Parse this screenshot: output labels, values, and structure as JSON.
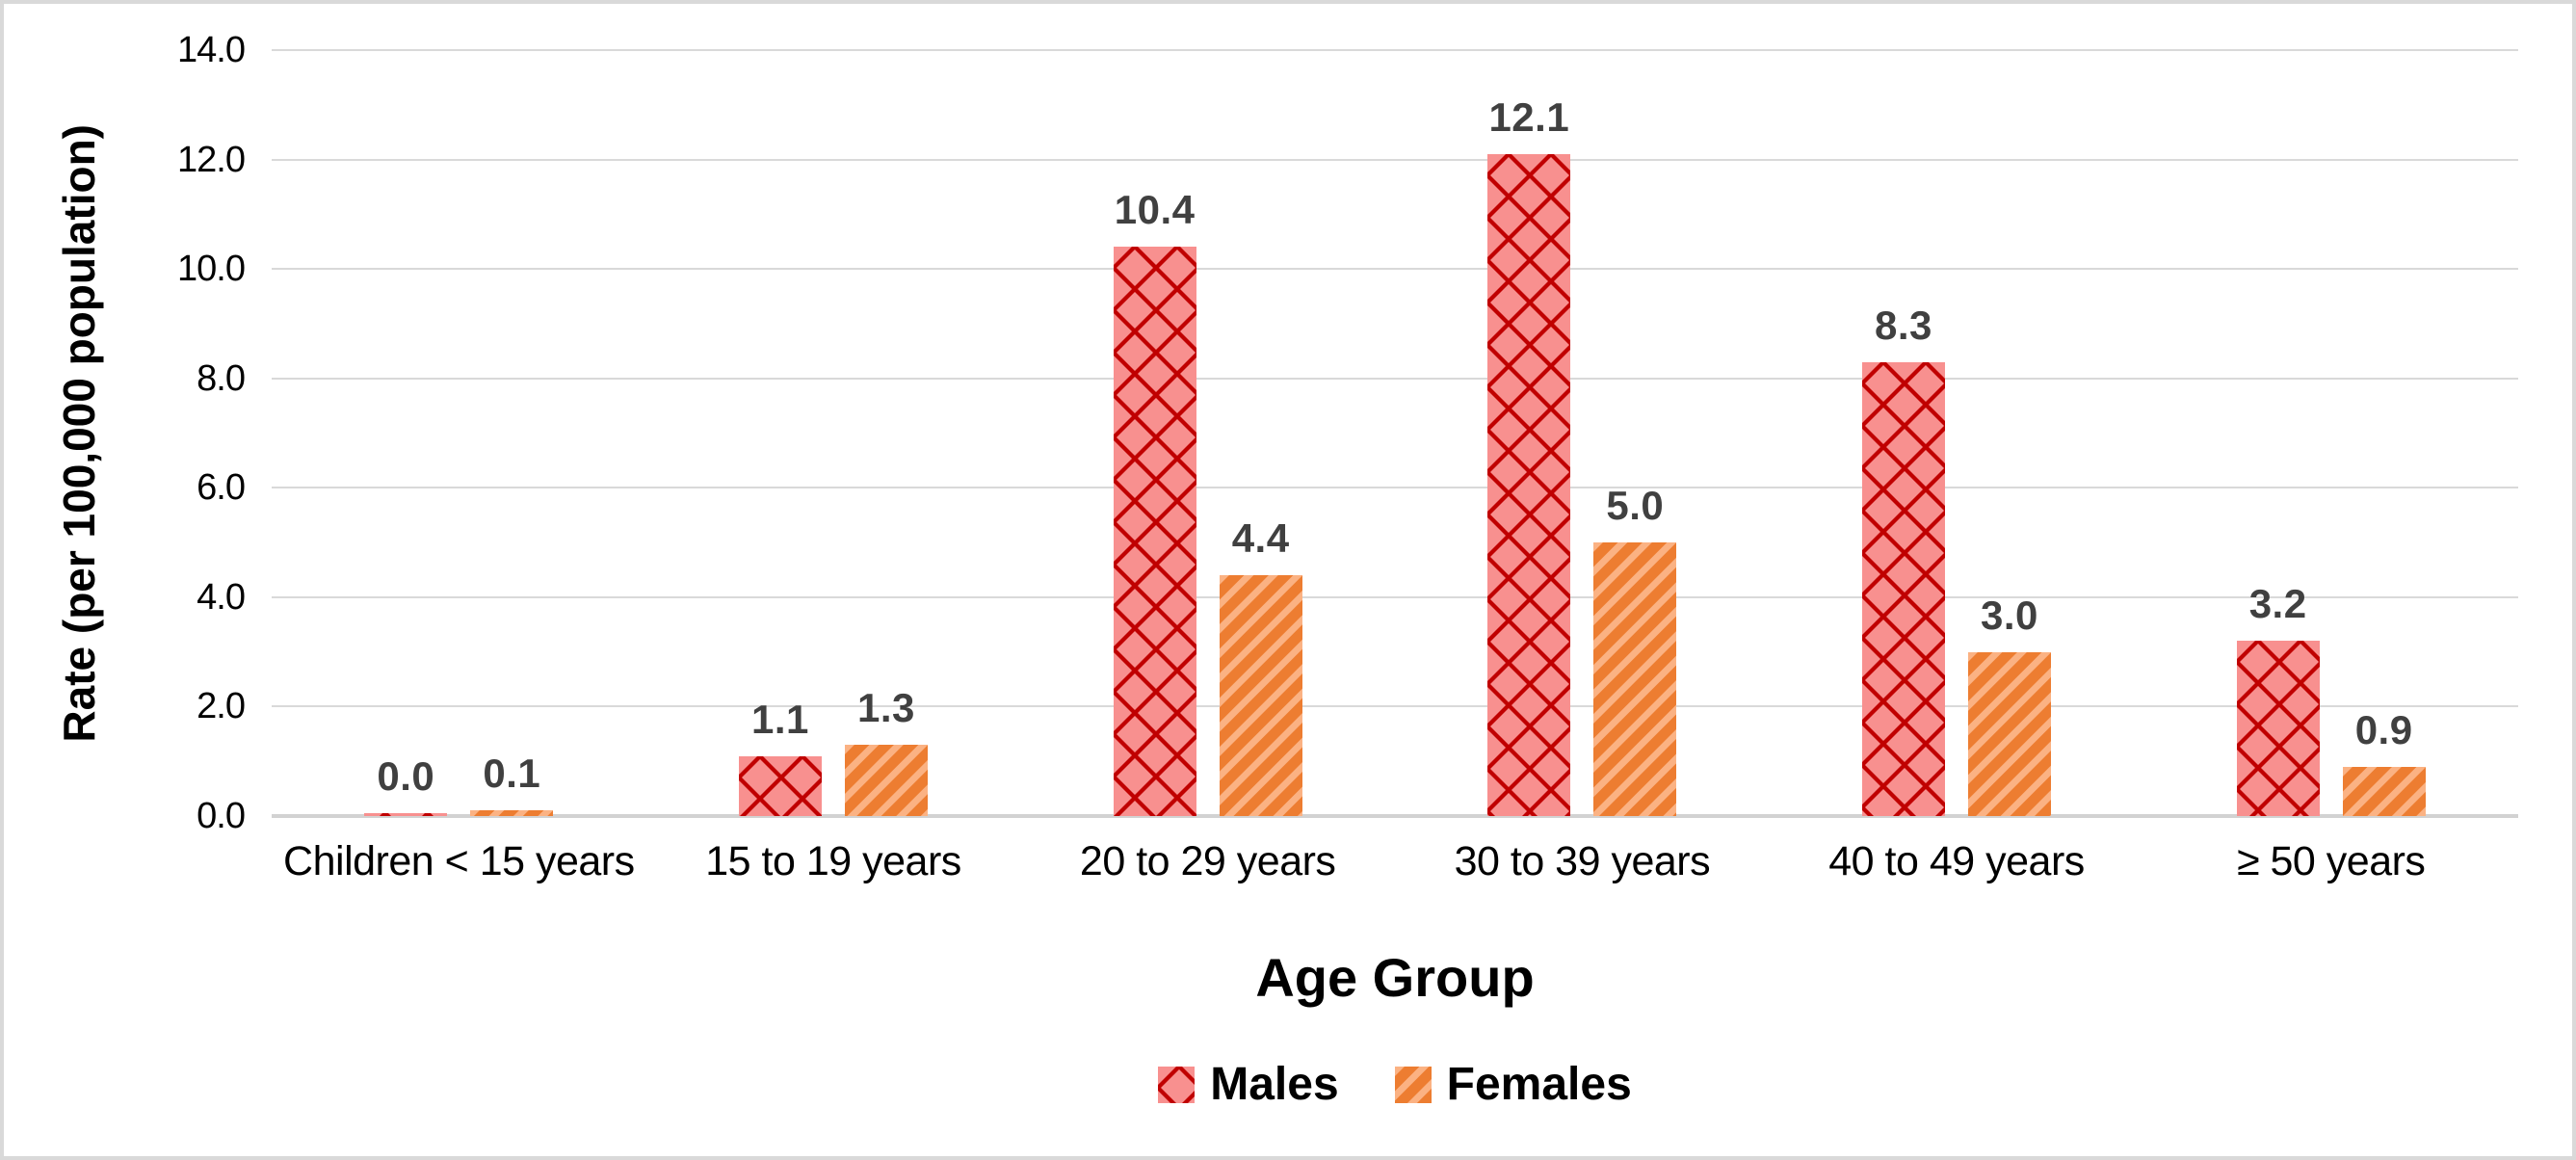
{
  "chart_data": {
    "type": "bar",
    "title": "",
    "xlabel": "Age Group",
    "ylabel": "Rate (per 100,000 population)",
    "categories": [
      "Children < 15 years",
      "15 to 19 years",
      "20 to 29 years",
      "30 to 39 years",
      "40 to 49 years",
      "≥ 50 years"
    ],
    "series": [
      {
        "name": "Males",
        "values": [
          0.0,
          1.1,
          10.4,
          12.1,
          8.3,
          3.2
        ],
        "labels": [
          "0.0",
          "1.1",
          "10.4",
          "12.1",
          "8.3",
          "3.2"
        ],
        "pattern": "diamond-checker",
        "color": "#C00000",
        "pattern_color": "#F8908F"
      },
      {
        "name": "Females",
        "values": [
          0.1,
          1.3,
          4.4,
          5.0,
          3.0,
          0.9
        ],
        "labels": [
          "0.1",
          "1.3",
          "4.4",
          "5.0",
          "3.0",
          "0.9"
        ],
        "pattern": "diagonal-stripes",
        "color": "#ED7D31",
        "pattern_color": "#FBB283"
      }
    ],
    "y_ticks": [
      "14.0",
      "12.0",
      "10.0",
      "8.0",
      "6.0",
      "4.0",
      "2.0",
      "0.0"
    ],
    "ylim": [
      0,
      14
    ],
    "grid": true,
    "legend_position": "bottom"
  },
  "colors": {
    "male_fill": "#C00000",
    "male_pattern": "#F8908F",
    "female_fill": "#ED7D31",
    "female_pattern": "#FBB283",
    "data_label": "#404040",
    "gridline": "#D9D9D9",
    "axis_baseline": "#D2D2D2",
    "axis_text": "#000000",
    "frame_border": "#D9D9D9"
  }
}
